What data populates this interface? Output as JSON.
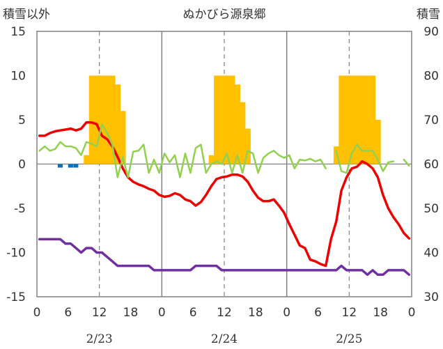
{
  "chart_data": {
    "type": "line",
    "title": "ぬかびら源泉郷",
    "y_left_label": "積雪以外",
    "y_right_label": "積雪",
    "y_left_lim": [
      -15,
      15
    ],
    "y_left_ticks": [
      "15",
      "10",
      "5",
      "0",
      "-5",
      "-10",
      "-15"
    ],
    "y_right_lim": [
      30,
      90
    ],
    "y_right_ticks": [
      "90",
      "80",
      "70",
      "60",
      "50",
      "40",
      "30"
    ],
    "x_lim": [
      0,
      72
    ],
    "x_tick_labels": [
      "0",
      "6",
      "12",
      "18",
      "0",
      "6",
      "12",
      "18",
      "0",
      "6",
      "12",
      "18",
      "0"
    ],
    "date_labels": [
      {
        "label": "2/23",
        "hour": 12
      },
      {
        "label": "2/24",
        "hour": 36
      },
      {
        "label": "2/25",
        "hour": 60
      }
    ],
    "grid": "dashed vertical at 12h and 36h and 60h; solid separators at 24h and 48h",
    "colors": {
      "red_line": "#ee0000",
      "green_line": "#92d050",
      "purple_line": "#7030a0",
      "orange_bars": "#ffc000",
      "blue_bars": "#0070c0"
    },
    "series": [
      {
        "axis": "left",
        "style": "line",
        "color": "#ee0000",
        "x": [
          0,
          1,
          2,
          3,
          4,
          5,
          6,
          7,
          8,
          9,
          10,
          11,
          12,
          13,
          14,
          15,
          16,
          17,
          18,
          19,
          20,
          21,
          22,
          23,
          24,
          25,
          26,
          27,
          28,
          29,
          30,
          31,
          32,
          33,
          34,
          35,
          36,
          37,
          38,
          39,
          40,
          41,
          42,
          43,
          44,
          45,
          46,
          47,
          48,
          49,
          50,
          51,
          52,
          53,
          54,
          55,
          56,
          57,
          58,
          59,
          60,
          61,
          62,
          63,
          64,
          65,
          66,
          67,
          68,
          69,
          70,
          71
        ],
        "values": [
          3.2,
          3.2,
          3.5,
          3.7,
          3.8,
          3.9,
          4.0,
          3.8,
          4.0,
          4.7,
          4.7,
          4.5,
          3.2,
          2.8,
          2.0,
          0.8,
          -0.5,
          -1.5,
          -2.0,
          -2.3,
          -2.5,
          -2.8,
          -3.0,
          -3.5,
          -3.7,
          -3.6,
          -3.3,
          -3.5,
          -4.0,
          -4.2,
          -4.7,
          -4.3,
          -3.5,
          -2.5,
          -1.7,
          -1.5,
          -1.4,
          -1.2,
          -1.2,
          -1.4,
          -2.0,
          -3.0,
          -3.8,
          -4.2,
          -4.2,
          -4.0,
          -4.7,
          -5.5,
          -6.8,
          -8.0,
          -9.2,
          -9.5,
          -10.8,
          -11.0,
          -11.3,
          -11.5,
          -8.5,
          -6.5,
          -3.0,
          -1.5,
          -0.5,
          -0.3,
          0.3,
          0.0,
          -0.5,
          -1.5,
          -3.5,
          -5.0,
          -6.0,
          -6.8,
          -7.8,
          -8.4
        ]
      },
      {
        "axis": "left",
        "style": "line",
        "color": "#92d050",
        "x": [
          0,
          1,
          2,
          3,
          4,
          5,
          6,
          7,
          8,
          9,
          10,
          11,
          12,
          13,
          14,
          15,
          16,
          17,
          18,
          19,
          20,
          21,
          22,
          23,
          24,
          25,
          26,
          27,
          28,
          29,
          30,
          31,
          32,
          33,
          34,
          35,
          36,
          37,
          38,
          39,
          40,
          41,
          42,
          43,
          44,
          45,
          46,
          47,
          48,
          49,
          50,
          51,
          52,
          53,
          54,
          55,
          56,
          57,
          58,
          59,
          60,
          61,
          62,
          63,
          64,
          65,
          66,
          67,
          68,
          69,
          70,
          71
        ],
        "values": [
          1.5,
          2.0,
          1.5,
          1.7,
          2.5,
          2.0,
          2.0,
          1.8,
          1.0,
          2.5,
          2.3,
          2.0,
          4.5,
          3.5,
          2.2,
          -1.5,
          0.8,
          -1.5,
          1.4,
          1.5,
          2.2,
          -1.0,
          0.5,
          -1.0,
          1.2,
          0.2,
          1.0,
          -1.5,
          1.2,
          -1.0,
          1.8,
          2.2,
          -1.0,
          0.0,
          0.3,
          0.0,
          1.2,
          -1.0,
          1.0,
          -1.0,
          1.5,
          1.2,
          -1.0,
          0.7,
          1.2,
          1.5,
          1.0,
          0.7,
          1.0,
          -0.5,
          0.5,
          0.4,
          0.6,
          0.3,
          0.5,
          -0.5,
          null,
          1.5,
          -0.8,
          -1.0,
          1.2,
          2.2,
          1.5,
          1.5,
          1.5,
          0.5,
          -0.8,
          0.2,
          0.3,
          null,
          0.5,
          -0.2
        ]
      },
      {
        "axis": "left",
        "style": "line",
        "color": "#7030a0",
        "x": [
          0,
          1,
          2,
          3,
          4,
          5,
          6,
          7,
          8,
          9,
          10,
          11,
          12,
          13,
          14,
          15,
          16,
          17,
          18,
          19,
          20,
          21,
          22,
          23,
          24,
          25,
          26,
          27,
          28,
          29,
          30,
          31,
          32,
          33,
          34,
          35,
          36,
          37,
          38,
          39,
          40,
          41,
          42,
          43,
          44,
          45,
          46,
          47,
          48,
          49,
          50,
          51,
          52,
          53,
          54,
          55,
          56,
          57,
          58,
          59,
          60,
          61,
          62,
          63,
          64,
          65,
          66,
          67,
          68,
          69,
          70,
          71
        ],
        "values": [
          -8.5,
          -8.5,
          -8.5,
          -8.5,
          -8.5,
          -9.0,
          -9.0,
          -9.5,
          -10.0,
          -9.5,
          -9.5,
          -10.0,
          -10.0,
          -10.5,
          -11.0,
          -11.5,
          -11.5,
          -11.5,
          -11.5,
          -11.5,
          -11.5,
          -11.5,
          -12.0,
          -12.0,
          -12.0,
          -12.0,
          -12.0,
          -12.0,
          -12.0,
          -12.0,
          -11.5,
          -11.5,
          -11.5,
          -11.5,
          -11.5,
          -12.0,
          -12.0,
          -12.0,
          -12.0,
          -12.0,
          -12.0,
          -12.0,
          -12.0,
          -12.0,
          -12.0,
          -12.0,
          -12.0,
          -12.0,
          -12.0,
          -12.0,
          -12.0,
          -12.0,
          -12.0,
          -12.0,
          -12.0,
          -12.0,
          -12.0,
          -12.0,
          -11.5,
          -12.0,
          -12.0,
          -12.0,
          -12.0,
          -12.5,
          -12.0,
          -12.5,
          -12.5,
          -12.0,
          -12.0,
          -12.0,
          -12.0,
          -12.5
        ]
      },
      {
        "axis": "left",
        "style": "bar",
        "color": "#ffc000",
        "x": [
          9,
          10,
          11,
          12,
          13,
          14,
          15,
          16,
          33,
          34,
          35,
          36,
          37,
          38,
          39,
          40,
          57,
          58,
          59,
          60,
          61,
          62,
          63,
          64,
          65
        ],
        "values": [
          1,
          10,
          10,
          10,
          10,
          10,
          9,
          6,
          1,
          10,
          10,
          10,
          10,
          9,
          7,
          4,
          2,
          10,
          10,
          10,
          10,
          10,
          10,
          10,
          5
        ]
      },
      {
        "axis": "left",
        "style": "bar",
        "color": "#0070c0",
        "x": [
          4,
          6,
          7
        ],
        "values": [
          -0.4,
          -0.4,
          -0.4
        ]
      }
    ]
  }
}
